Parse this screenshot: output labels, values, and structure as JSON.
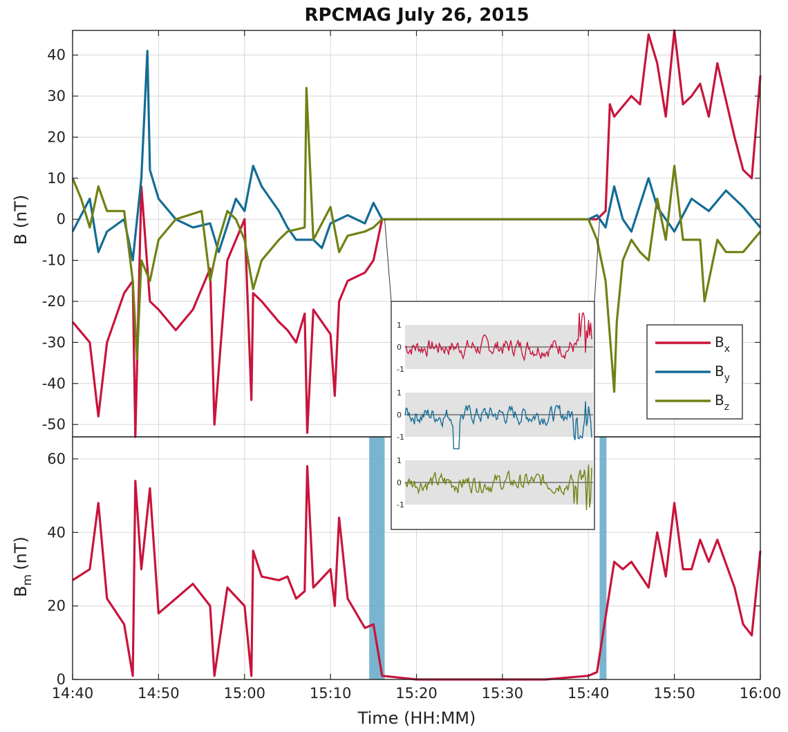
{
  "chart_data": [
    {
      "panel": "top",
      "type": "line",
      "title": "RPCMAG July 26, 2015",
      "ylabel": "B (nT)",
      "ylim": [
        -53,
        46
      ],
      "yticks": [
        40,
        30,
        20,
        10,
        0,
        -10,
        -20,
        -30,
        -40,
        -50
      ],
      "grid": true,
      "legend_position": "lower-right",
      "series": [
        {
          "name": "B_x",
          "label_main": "B",
          "label_sub": "x",
          "color": "#c8143c",
          "x": [
            "14:40",
            "14:42",
            "14:43",
            "14:44",
            "14:46",
            "14:47",
            "14:47.3",
            "14:48",
            "14:49",
            "14:50",
            "14:52",
            "14:54",
            "14:56",
            "14:56.5",
            "14:58",
            "15:00",
            "15:00.8",
            "15:01",
            "15:02",
            "15:04",
            "15:05",
            "15:06",
            "15:07",
            "15:07.3",
            "15:08",
            "15:10",
            "15:10.5",
            "15:11",
            "15:12",
            "15:14",
            "15:15",
            "15:16",
            "15:20",
            "15:25",
            "15:30",
            "15:35",
            "15:40",
            "15:41",
            "15:42",
            "15:42.5",
            "15:43",
            "15:45",
            "15:46",
            "15:47",
            "15:48",
            "15:49",
            "15:50",
            "15:51",
            "15:52",
            "15:53",
            "15:54",
            "15:55",
            "15:57",
            "15:58",
            "15:59",
            "16:00"
          ],
          "y": [
            -25,
            -30,
            -48,
            -30,
            -18,
            -15,
            -53,
            8,
            -20,
            -22,
            -27,
            -22,
            -12,
            -50,
            -10,
            0,
            -44,
            -18,
            -20,
            -25,
            -27,
            -30,
            -23,
            -52,
            -22,
            -28,
            -43,
            -20,
            -15,
            -13,
            -10,
            0,
            0,
            0,
            0,
            0,
            0,
            0,
            2,
            28,
            25,
            30,
            28,
            45,
            38,
            25,
            46,
            28,
            30,
            33,
            25,
            38,
            20,
            12,
            10,
            35
          ]
        },
        {
          "name": "B_y",
          "label_main": "B",
          "label_sub": "y",
          "color": "#136c96",
          "x": [
            "14:40",
            "14:42",
            "14:43",
            "14:44",
            "14:46",
            "14:47",
            "14:48",
            "14:48.7",
            "14:49",
            "14:50",
            "14:52",
            "14:54",
            "14:56",
            "14:57",
            "14:59",
            "15:00",
            "15:01",
            "15:02",
            "15:04",
            "15:05",
            "15:06",
            "15:08",
            "15:09",
            "15:10",
            "15:12",
            "15:14",
            "15:15",
            "15:16",
            "15:20",
            "15:30",
            "15:40",
            "15:41",
            "15:42",
            "15:43",
            "15:44",
            "15:45",
            "15:47",
            "15:48",
            "15:50",
            "15:52",
            "15:54",
            "15:56",
            "15:58",
            "16:00"
          ],
          "y": [
            -3,
            5,
            -8,
            -3,
            0,
            -10,
            10,
            41,
            12,
            5,
            0,
            -2,
            -1,
            -8,
            5,
            2,
            13,
            8,
            2,
            -2,
            -5,
            -5,
            -7,
            -1,
            1,
            -1,
            4,
            0,
            0,
            0,
            0,
            1,
            -2,
            8,
            0,
            -3,
            10,
            3,
            -3,
            5,
            2,
            7,
            3,
            -2
          ]
        },
        {
          "name": "B_z",
          "label_main": "B",
          "label_sub": "z",
          "color": "#6e8214",
          "x": [
            "14:40",
            "14:41",
            "14:42",
            "14:43",
            "14:44",
            "14:46",
            "14:47",
            "14:47.5",
            "14:48",
            "14:49",
            "14:50",
            "14:52",
            "14:55",
            "14:56",
            "14:57",
            "14:58",
            "14:59",
            "15:00",
            "15:01",
            "15:02",
            "15:04",
            "15:05",
            "15:07",
            "15:07.2",
            "15:08",
            "15:10",
            "15:11",
            "15:12",
            "15:14",
            "15:15",
            "15:16",
            "15:20",
            "15:30",
            "15:40",
            "15:41",
            "15:42",
            "15:43",
            "15:43.3",
            "15:44",
            "15:45",
            "15:46",
            "15:47",
            "15:48",
            "15:49",
            "15:50",
            "15:51",
            "15:53",
            "15:53.5",
            "15:55",
            "15:56",
            "15:58",
            "16:00"
          ],
          "y": [
            10,
            5,
            -2,
            8,
            2,
            2,
            -15,
            -34,
            -10,
            -15,
            -5,
            0,
            2,
            -15,
            -5,
            2,
            0,
            -5,
            -17,
            -10,
            -5,
            -3,
            -2,
            32,
            -5,
            3,
            -8,
            -4,
            -3,
            -2,
            0,
            0,
            0,
            0,
            -5,
            -15,
            -42,
            -25,
            -10,
            -5,
            -8,
            -10,
            5,
            -5,
            13,
            -5,
            -5,
            -20,
            -5,
            -8,
            -8,
            -3
          ]
        }
      ],
      "inset": {
        "yticks": [
          "1",
          "0",
          "-1"
        ],
        "traces": [
          "B_x",
          "B_y",
          "B_z"
        ]
      }
    },
    {
      "panel": "bottom",
      "type": "line",
      "xlabel": "Time (HH:MM)",
      "ylabel_main": "B",
      "ylabel_sub": "m",
      "ylabel_unit": "(nT)",
      "ylim": [
        0,
        66
      ],
      "yticks": [
        60,
        40,
        20,
        0
      ],
      "xticks": [
        "14:40",
        "14:50",
        "15:00",
        "15:10",
        "15:20",
        "15:30",
        "15:40",
        "15:50",
        "16:00"
      ],
      "grid": true,
      "series": [
        {
          "color": "#c8143c",
          "x": [
            "14:40",
            "14:42",
            "14:43",
            "14:44",
            "14:46",
            "14:47",
            "14:47.3",
            "14:48",
            "14:49",
            "14:50",
            "14:52",
            "14:54",
            "14:56",
            "14:56.5",
            "14:58",
            "15:00",
            "15:00.8",
            "15:01",
            "15:02",
            "15:04",
            "15:05",
            "15:06",
            "15:07",
            "15:07.3",
            "15:08",
            "15:10",
            "15:10.5",
            "15:11",
            "15:12",
            "15:14",
            "15:15",
            "15:16",
            "15:20",
            "15:25",
            "15:30",
            "15:35",
            "15:40",
            "15:41",
            "15:42",
            "15:43",
            "15:44",
            "15:45",
            "15:47",
            "15:48",
            "15:49",
            "15:50",
            "15:51",
            "15:52",
            "15:53",
            "15:54",
            "15:55",
            "15:57",
            "15:58",
            "15:59",
            "16:00"
          ],
          "y": [
            27,
            30,
            48,
            22,
            15,
            1,
            54,
            30,
            52,
            18,
            22,
            26,
            20,
            1,
            25,
            20,
            1,
            35,
            28,
            27,
            28,
            22,
            24,
            58,
            25,
            30,
            20,
            44,
            22,
            14,
            15,
            1,
            0,
            0,
            0,
            0,
            1,
            2,
            17,
            32,
            30,
            32,
            25,
            40,
            28,
            48,
            30,
            30,
            38,
            32,
            38,
            25,
            15,
            12,
            35
          ]
        }
      ],
      "shaded_intervals": [
        {
          "start": "15:14.5",
          "end": "15:16.3",
          "color": "#62a8c8"
        },
        {
          "start": "15:41.3",
          "end": "15:42.1",
          "color": "#62a8c8"
        }
      ]
    }
  ]
}
